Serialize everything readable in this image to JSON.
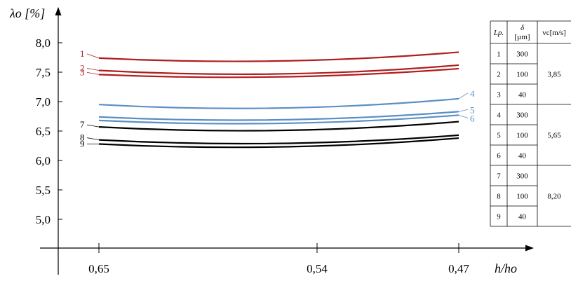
{
  "chart_data": {
    "type": "line",
    "ylabel": "λo [%]",
    "xlabel": "h/ho",
    "x": [
      "0,65",
      "0,54",
      "0,47"
    ],
    "y_ticks": [
      "5,0",
      "5,5",
      "6,0",
      "6,5",
      "7,0",
      "7,5",
      "8,0"
    ],
    "ylim": [
      4.6,
      8.5
    ],
    "grid": false,
    "series": [
      {
        "name": "1",
        "values": [
          7.74,
          7.69,
          7.84
        ],
        "color": "#b01e1e"
      },
      {
        "name": "2",
        "values": [
          7.53,
          7.47,
          7.62
        ],
        "color": "#b01e1e"
      },
      {
        "name": "3",
        "values": [
          7.46,
          7.42,
          7.56
        ],
        "color": "#b01e1e"
      },
      {
        "name": "4",
        "values": [
          6.95,
          6.89,
          7.05
        ],
        "color": "#5b8fc4"
      },
      {
        "name": "5",
        "values": [
          6.74,
          6.69,
          6.83
        ],
        "color": "#5b8fc4"
      },
      {
        "name": "6",
        "values": [
          6.68,
          6.63,
          6.77
        ],
        "color": "#5b8fc4"
      },
      {
        "name": "7",
        "values": [
          6.57,
          6.51,
          6.66
        ],
        "color": "#000000"
      },
      {
        "name": "8",
        "values": [
          6.35,
          6.29,
          6.43
        ],
        "color": "#000000"
      },
      {
        "name": "9",
        "values": [
          6.28,
          6.23,
          6.38
        ],
        "color": "#000000"
      }
    ]
  },
  "table": {
    "headers": [
      "Lp.",
      "δ",
      "[µm]",
      "vc[m/s]"
    ],
    "rows": [
      {
        "lp": "1",
        "delta": "300",
        "color": "#b01e1e"
      },
      {
        "lp": "2",
        "delta": "100",
        "color": "#b01e1e"
      },
      {
        "lp": "3",
        "delta": "40",
        "color": "#b01e1e"
      },
      {
        "lp": "4",
        "delta": "300",
        "color": "#5b8fc4"
      },
      {
        "lp": "5",
        "delta": "100",
        "color": "#5b8fc4"
      },
      {
        "lp": "6",
        "delta": "40",
        "color": "#5b8fc4"
      },
      {
        "lp": "7",
        "delta": "300",
        "color": "#000000"
      },
      {
        "lp": "8",
        "delta": "100",
        "color": "#000000"
      },
      {
        "lp": "9",
        "delta": "40",
        "color": "#000000"
      }
    ],
    "vc_groups": [
      "3,85",
      "5,65",
      "8,20"
    ]
  }
}
